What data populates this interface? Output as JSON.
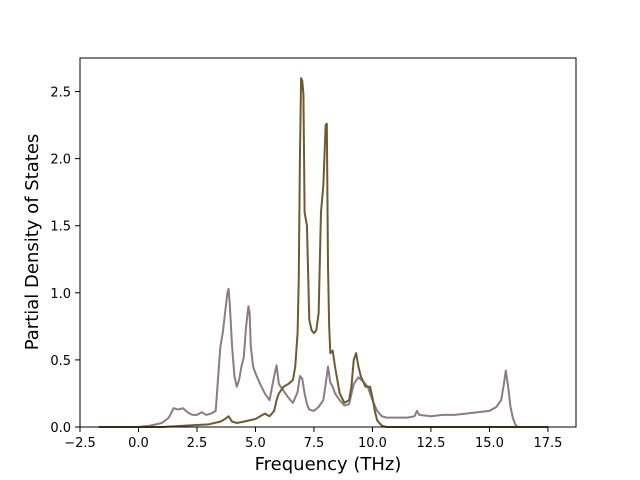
{
  "chart_data": {
    "type": "line",
    "title": "",
    "xlabel": "Frequency (THz)",
    "ylabel": "Partial Density of States",
    "xlim": [
      -2.5,
      18.7
    ],
    "ylim": [
      0.0,
      2.75
    ],
    "xticks": [
      -2.5,
      0.0,
      2.5,
      5.0,
      7.5,
      10.0,
      12.5,
      15.0,
      17.5
    ],
    "xtick_labels": [
      "−2.5",
      "0.0",
      "2.5",
      "5.0",
      "7.5",
      "10.0",
      "12.5",
      "15.0",
      "17.5"
    ],
    "yticks": [
      0.0,
      0.5,
      1.0,
      1.5,
      2.0,
      2.5
    ],
    "ytick_labels": [
      "0.0",
      "0.5",
      "1.0",
      "1.5",
      "2.0",
      "2.5"
    ],
    "grid": false,
    "legend": "none",
    "series": [
      {
        "color": "#8c7a86",
        "x": [
          -1.7,
          0.0,
          0.5,
          1.0,
          1.3,
          1.5,
          1.7,
          1.9,
          2.1,
          2.3,
          2.5,
          2.7,
          2.9,
          3.1,
          3.3,
          3.5,
          3.6,
          3.7,
          3.8,
          3.85,
          3.9,
          4.0,
          4.1,
          4.2,
          4.3,
          4.4,
          4.5,
          4.6,
          4.7,
          4.75,
          4.8,
          4.9,
          5.0,
          5.2,
          5.4,
          5.6,
          5.8,
          5.9,
          6.0,
          6.2,
          6.4,
          6.6,
          6.8,
          6.9,
          7.0,
          7.1,
          7.2,
          7.3,
          7.5,
          7.7,
          7.9,
          8.0,
          8.1,
          8.2,
          8.3,
          8.4,
          8.6,
          8.8,
          9.0,
          9.2,
          9.4,
          9.6,
          9.8,
          10.0,
          10.2,
          10.4,
          10.6,
          11.0,
          11.5,
          11.8,
          11.9,
          12.0,
          12.5,
          13.0,
          13.5,
          14.0,
          14.5,
          15.0,
          15.3,
          15.5,
          15.6,
          15.7,
          15.8,
          15.9,
          16.0,
          16.1,
          16.2,
          17.5
        ],
        "y": [
          0.0,
          0.0,
          0.01,
          0.03,
          0.07,
          0.14,
          0.13,
          0.14,
          0.11,
          0.09,
          0.09,
          0.11,
          0.09,
          0.1,
          0.12,
          0.6,
          0.7,
          0.85,
          1.0,
          1.03,
          0.92,
          0.6,
          0.38,
          0.3,
          0.35,
          0.45,
          0.52,
          0.75,
          0.9,
          0.85,
          0.6,
          0.45,
          0.4,
          0.32,
          0.25,
          0.2,
          0.38,
          0.46,
          0.32,
          0.27,
          0.22,
          0.18,
          0.26,
          0.38,
          0.36,
          0.25,
          0.17,
          0.13,
          0.12,
          0.15,
          0.2,
          0.32,
          0.45,
          0.33,
          0.3,
          0.25,
          0.2,
          0.16,
          0.17,
          0.32,
          0.37,
          0.34,
          0.3,
          0.2,
          0.12,
          0.08,
          0.07,
          0.07,
          0.07,
          0.08,
          0.12,
          0.09,
          0.08,
          0.09,
          0.09,
          0.1,
          0.11,
          0.12,
          0.15,
          0.2,
          0.3,
          0.42,
          0.3,
          0.15,
          0.07,
          0.02,
          0.0,
          0.0
        ]
      },
      {
        "color": "#6e5a30",
        "x": [
          -1.7,
          0.0,
          1.0,
          2.0,
          3.0,
          3.5,
          3.7,
          3.85,
          4.0,
          4.2,
          4.5,
          5.0,
          5.2,
          5.4,
          5.6,
          5.8,
          5.9,
          6.0,
          6.2,
          6.4,
          6.6,
          6.7,
          6.8,
          6.85,
          6.9,
          6.95,
          7.0,
          7.05,
          7.1,
          7.2,
          7.3,
          7.4,
          7.5,
          7.6,
          7.7,
          7.8,
          7.9,
          8.0,
          8.05,
          8.1,
          8.15,
          8.2,
          8.3,
          8.4,
          8.5,
          8.6,
          8.8,
          9.0,
          9.1,
          9.2,
          9.3,
          9.4,
          9.5,
          9.7,
          9.9,
          10.0,
          10.1,
          10.2,
          10.4,
          10.6,
          11.0,
          17.5
        ],
        "y": [
          0.0,
          0.0,
          0.0,
          0.01,
          0.02,
          0.04,
          0.06,
          0.08,
          0.04,
          0.03,
          0.04,
          0.06,
          0.08,
          0.1,
          0.08,
          0.12,
          0.2,
          0.25,
          0.3,
          0.32,
          0.35,
          0.45,
          0.7,
          1.1,
          2.0,
          2.6,
          2.58,
          2.48,
          1.6,
          1.5,
          0.8,
          0.72,
          0.7,
          0.72,
          0.85,
          1.6,
          1.8,
          2.25,
          2.26,
          1.2,
          0.75,
          0.55,
          0.57,
          0.45,
          0.35,
          0.25,
          0.18,
          0.2,
          0.3,
          0.5,
          0.55,
          0.45,
          0.38,
          0.3,
          0.3,
          0.22,
          0.12,
          0.05,
          0.01,
          0.0,
          0.0,
          0.0
        ]
      }
    ]
  }
}
